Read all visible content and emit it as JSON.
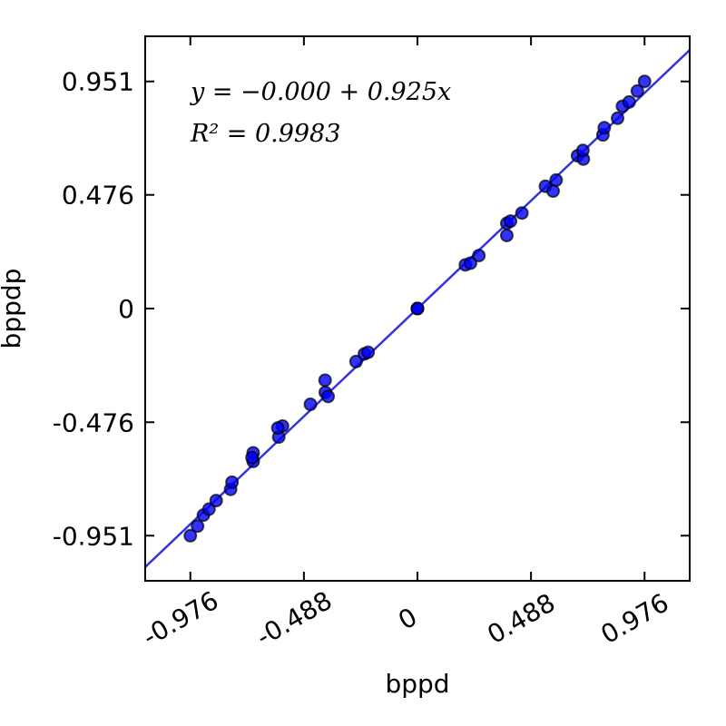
{
  "chart_data": {
    "type": "scatter",
    "title": "",
    "xlabel": "bppd",
    "ylabel": "bppdp",
    "xlim": [
      -1.17,
      1.17
    ],
    "ylim": [
      -1.14,
      1.14
    ],
    "xticks": [
      -0.976,
      -0.488,
      0,
      0.488,
      0.976
    ],
    "xtick_labels": [
      "-0.976",
      "-0.488",
      "0",
      "0.488",
      "0.976"
    ],
    "yticks": [
      -0.951,
      -0.476,
      0,
      0.476,
      0.951
    ],
    "ytick_labels": [
      "-0.951",
      "-0.476",
      "0",
      "0.476",
      "0.951"
    ],
    "grid": false,
    "annotations": [
      "y = −0.000 + 0.925x",
      "R² = 0.9983"
    ],
    "fit": {
      "intercept": 0.0,
      "slope": 0.925,
      "r2": 0.9983
    },
    "colors": {
      "points": "#0000ff",
      "fit_line": "#3333dd",
      "point_edge": "#000000"
    },
    "points": [
      [
        -0.976,
        -0.951
      ],
      [
        -0.945,
        -0.911
      ],
      [
        -0.92,
        -0.865
      ],
      [
        -0.896,
        -0.84
      ],
      [
        -0.865,
        -0.804
      ],
      [
        -0.803,
        -0.757
      ],
      [
        -0.797,
        -0.727
      ],
      [
        -0.706,
        -0.64
      ],
      [
        -0.706,
        -0.604
      ],
      [
        -0.711,
        -0.624
      ],
      [
        -0.596,
        -0.538
      ],
      [
        -0.58,
        -0.492
      ],
      [
        -0.6,
        -0.5
      ],
      [
        -0.46,
        -0.401
      ],
      [
        -0.396,
        -0.351
      ],
      [
        -0.397,
        -0.3
      ],
      [
        -0.384,
        -0.368
      ],
      [
        -0.264,
        -0.222
      ],
      [
        -0.228,
        -0.19
      ],
      [
        -0.212,
        -0.183
      ],
      [
        0.0,
        0.0
      ],
      [
        0.0,
        0.0
      ],
      [
        0.0,
        0.0
      ],
      [
        0.206,
        0.183
      ],
      [
        0.228,
        0.19
      ],
      [
        0.264,
        0.222
      ],
      [
        0.384,
        0.357
      ],
      [
        0.384,
        0.306
      ],
      [
        0.4,
        0.366
      ],
      [
        0.449,
        0.4
      ],
      [
        0.55,
        0.512
      ],
      [
        0.583,
        0.492
      ],
      [
        0.596,
        0.538
      ],
      [
        0.688,
        0.64
      ],
      [
        0.713,
        0.626
      ],
      [
        0.711,
        0.662
      ],
      [
        0.797,
        0.727
      ],
      [
        0.803,
        0.757
      ],
      [
        0.86,
        0.797
      ],
      [
        0.881,
        0.847
      ],
      [
        0.91,
        0.865
      ],
      [
        0.945,
        0.911
      ],
      [
        0.976,
        0.951
      ]
    ]
  }
}
